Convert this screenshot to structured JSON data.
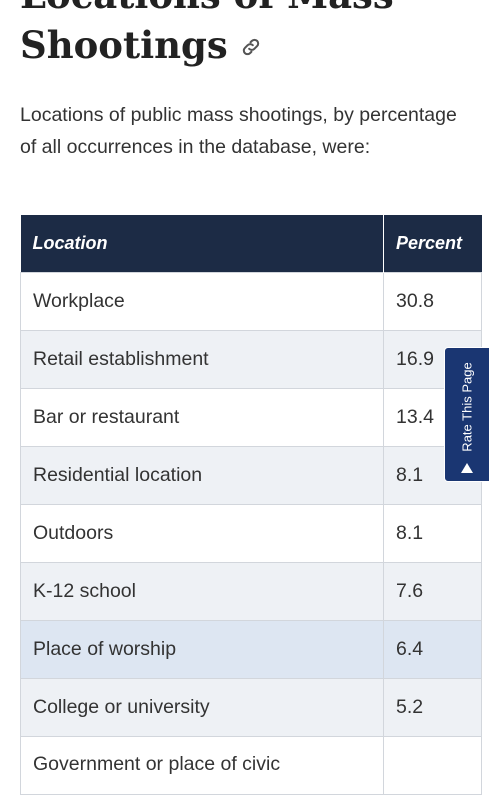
{
  "heading": {
    "line1": "Locations of Mass",
    "line2": "Shootings"
  },
  "intro": "Locations of public mass shootings, by percentage of all occurrences in the database, were:",
  "table": {
    "headers": [
      "Location",
      "Percent"
    ],
    "rows": [
      {
        "location": "Workplace",
        "percent": "30.8"
      },
      {
        "location": "Retail establishment",
        "percent": "16.9"
      },
      {
        "location": "Bar or restaurant",
        "percent": "13.4"
      },
      {
        "location": "Residential location",
        "percent": "8.1"
      },
      {
        "location": "Outdoors",
        "percent": "8.1"
      },
      {
        "location": "K-12 school",
        "percent": "7.6"
      },
      {
        "location": "Place of worship",
        "percent": "6.4"
      },
      {
        "location": "College or university",
        "percent": "5.2"
      },
      {
        "location": "Government or place of civic",
        "percent": ""
      }
    ]
  },
  "rate_tab": {
    "label": "Rate This Page",
    "icon": "triangle-up-icon"
  },
  "colors": {
    "header_bg": "#1c2b45",
    "row_alt": "#eef1f5",
    "row_highlight": "#dde6f2",
    "tab_bg": "#1a3672"
  }
}
